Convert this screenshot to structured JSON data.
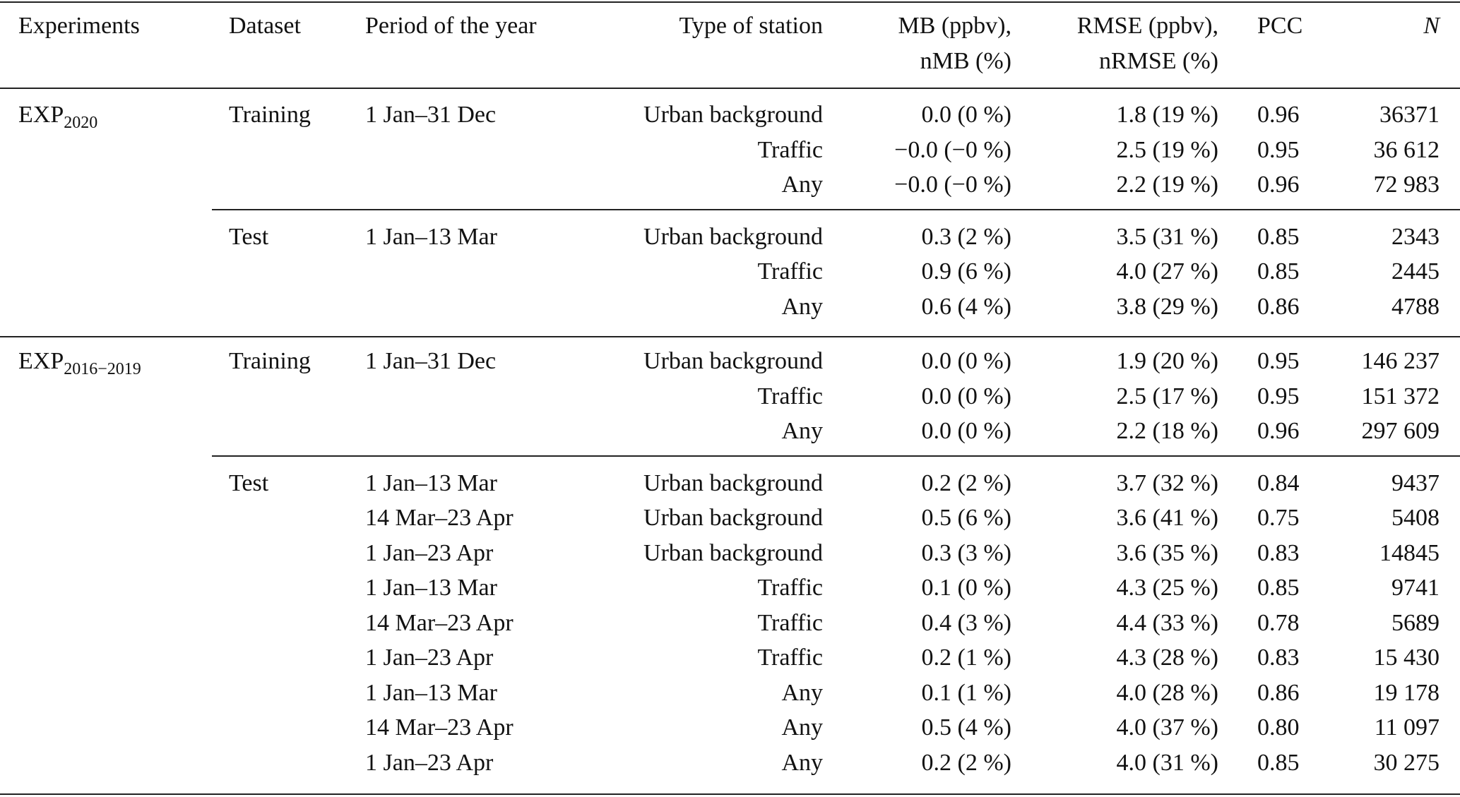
{
  "table": {
    "header": [
      "Experiments",
      "Dataset",
      "Period of the year",
      "Type of station",
      [
        "MB (ppbv),",
        "nMB (%)"
      ],
      [
        "RMSE (ppbv),",
        "nRMSE (%)"
      ],
      "PCC",
      "N"
    ],
    "groups": [
      {
        "experiment": {
          "base": "EXP",
          "sub": "2020"
        },
        "blocks": [
          {
            "dataset": "Training",
            "period": "1 Jan–31 Dec",
            "rows": [
              {
                "type": "Urban background",
                "mb": "0.0 (0 %)",
                "rmse": "1.8 (19 %)",
                "pcc": "0.96",
                "n": "36371"
              },
              {
                "type": "Traffic",
                "mb": "−0.0 (−0 %)",
                "rmse": "2.5 (19 %)",
                "pcc": "0.95",
                "n": "36 612"
              },
              {
                "type": "Any",
                "mb": "−0.0 (−0 %)",
                "rmse": "2.2 (19 %)",
                "pcc": "0.96",
                "n": "72 983"
              }
            ]
          },
          {
            "dataset": "Test",
            "period": "1 Jan–13 Mar",
            "rows": [
              {
                "type": "Urban background",
                "mb": "0.3 (2 %)",
                "rmse": "3.5 (31 %)",
                "pcc": "0.85",
                "n": "2343"
              },
              {
                "type": "Traffic",
                "mb": "0.9 (6 %)",
                "rmse": "4.0 (27 %)",
                "pcc": "0.85",
                "n": "2445"
              },
              {
                "type": "Any",
                "mb": "0.6 (4 %)",
                "rmse": "3.8 (29 %)",
                "pcc": "0.86",
                "n": "4788"
              }
            ]
          }
        ]
      },
      {
        "experiment": {
          "base": "EXP",
          "sub": "2016−2019"
        },
        "blocks": [
          {
            "dataset": "Training",
            "period": "1 Jan–31 Dec",
            "rows": [
              {
                "type": "Urban background",
                "mb": "0.0 (0 %)",
                "rmse": "1.9 (20 %)",
                "pcc": "0.95",
                "n": "146 237"
              },
              {
                "type": "Traffic",
                "mb": "0.0 (0 %)",
                "rmse": "2.5 (17 %)",
                "pcc": "0.95",
                "n": "151 372"
              },
              {
                "type": "Any",
                "mb": "0.0 (0 %)",
                "rmse": "2.2 (18 %)",
                "pcc": "0.96",
                "n": "297 609"
              }
            ]
          },
          {
            "dataset": "Test",
            "rows": [
              {
                "period": "1 Jan–13 Mar",
                "type": "Urban background",
                "mb": "0.2 (2 %)",
                "rmse": "3.7 (32 %)",
                "pcc": "0.84",
                "n": "9437"
              },
              {
                "period": "14 Mar–23 Apr",
                "type": "Urban background",
                "mb": "0.5 (6 %)",
                "rmse": "3.6 (41 %)",
                "pcc": "0.75",
                "n": "5408"
              },
              {
                "period": "1 Jan–23 Apr",
                "type": "Urban background",
                "mb": "0.3 (3 %)",
                "rmse": "3.6 (35 %)",
                "pcc": "0.83",
                "n": "14845"
              },
              {
                "period": "1 Jan–13 Mar",
                "type": "Traffic",
                "mb": "0.1 (0 %)",
                "rmse": "4.3 (25 %)",
                "pcc": "0.85",
                "n": "9741"
              },
              {
                "period": "14 Mar–23 Apr",
                "type": "Traffic",
                "mb": "0.4 (3 %)",
                "rmse": "4.4 (33 %)",
                "pcc": "0.78",
                "n": "5689"
              },
              {
                "period": "1 Jan–23 Apr",
                "type": "Traffic",
                "mb": "0.2 (1 %)",
                "rmse": "4.3 (28 %)",
                "pcc": "0.83",
                "n": "15 430"
              },
              {
                "period": "1 Jan–13 Mar",
                "type": "Any",
                "mb": "0.1 (1 %)",
                "rmse": "4.0 (28 %)",
                "pcc": "0.86",
                "n": "19 178"
              },
              {
                "period": "14 Mar–23 Apr",
                "type": "Any",
                "mb": "0.5 (4 %)",
                "rmse": "4.0 (37 %)",
                "pcc": "0.80",
                "n": "11 097"
              },
              {
                "period": "1 Jan–23 Apr",
                "type": "Any",
                "mb": "0.2 (2 %)",
                "rmse": "4.0 (31 %)",
                "pcc": "0.85",
                "n": "30 275"
              }
            ]
          }
        ]
      }
    ]
  }
}
